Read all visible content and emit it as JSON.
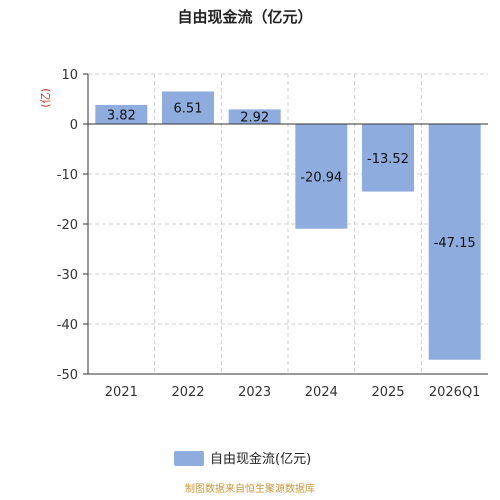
{
  "chart_data": {
    "type": "bar",
    "title": "自由现金流（亿元）",
    "unit_label": "(亿)",
    "categories": [
      "2021",
      "2022",
      "2023",
      "2024",
      "2025",
      "2026Q1"
    ],
    "series": [
      {
        "name": "自由现金流(亿元)",
        "values": [
          3.82,
          6.51,
          2.92,
          -20.94,
          -13.52,
          -47.15
        ],
        "color": "#8eadde"
      }
    ],
    "y_ticks": [
      10,
      0,
      -10,
      -20,
      -30,
      -40,
      -50
    ],
    "ylim": [
      -50,
      10
    ],
    "grid": true,
    "legend_position": "bottom",
    "source_note": "制图数据来自恒生聚源数据库"
  }
}
